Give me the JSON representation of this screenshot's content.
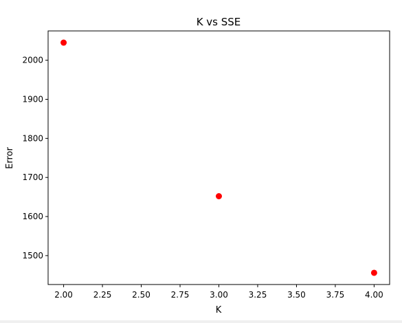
{
  "chart_data": {
    "type": "scatter",
    "title": "K vs SSE",
    "xlabel": "K",
    "ylabel": "Error",
    "x": [
      2,
      3,
      4
    ],
    "y": [
      2045,
      1652,
      1456
    ],
    "xlim": [
      1.9,
      4.1
    ],
    "ylim": [
      1426,
      2075
    ],
    "xticks": [
      2.0,
      2.25,
      2.5,
      2.75,
      3.0,
      3.25,
      3.5,
      3.75,
      4.0
    ],
    "xtick_labels": [
      "2.00",
      "2.25",
      "2.50",
      "2.75",
      "3.00",
      "3.25",
      "3.50",
      "3.75",
      "4.00"
    ],
    "yticks": [
      1500,
      1600,
      1700,
      1800,
      1900,
      2000
    ],
    "ytick_labels": [
      "1500",
      "1600",
      "1700",
      "1800",
      "1900",
      "2000"
    ],
    "marker_color": "#ff0000",
    "grid": false,
    "legend": "none"
  }
}
